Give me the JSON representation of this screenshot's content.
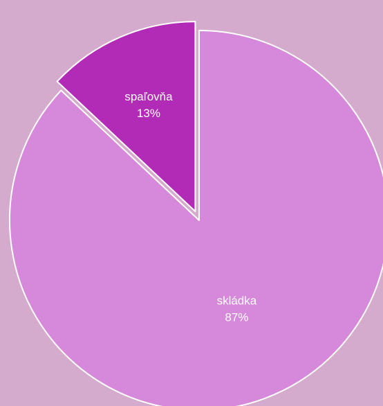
{
  "chart_data": {
    "type": "pie",
    "background": "#d4abcc",
    "slices": [
      {
        "label": "skládka",
        "value": 87,
        "value_label": "87%",
        "color": "#d689da",
        "exploded": false
      },
      {
        "label": "spaľovňa",
        "value": 13,
        "value_label": "13%",
        "color": "#b22bb6",
        "exploded": true
      }
    ]
  }
}
